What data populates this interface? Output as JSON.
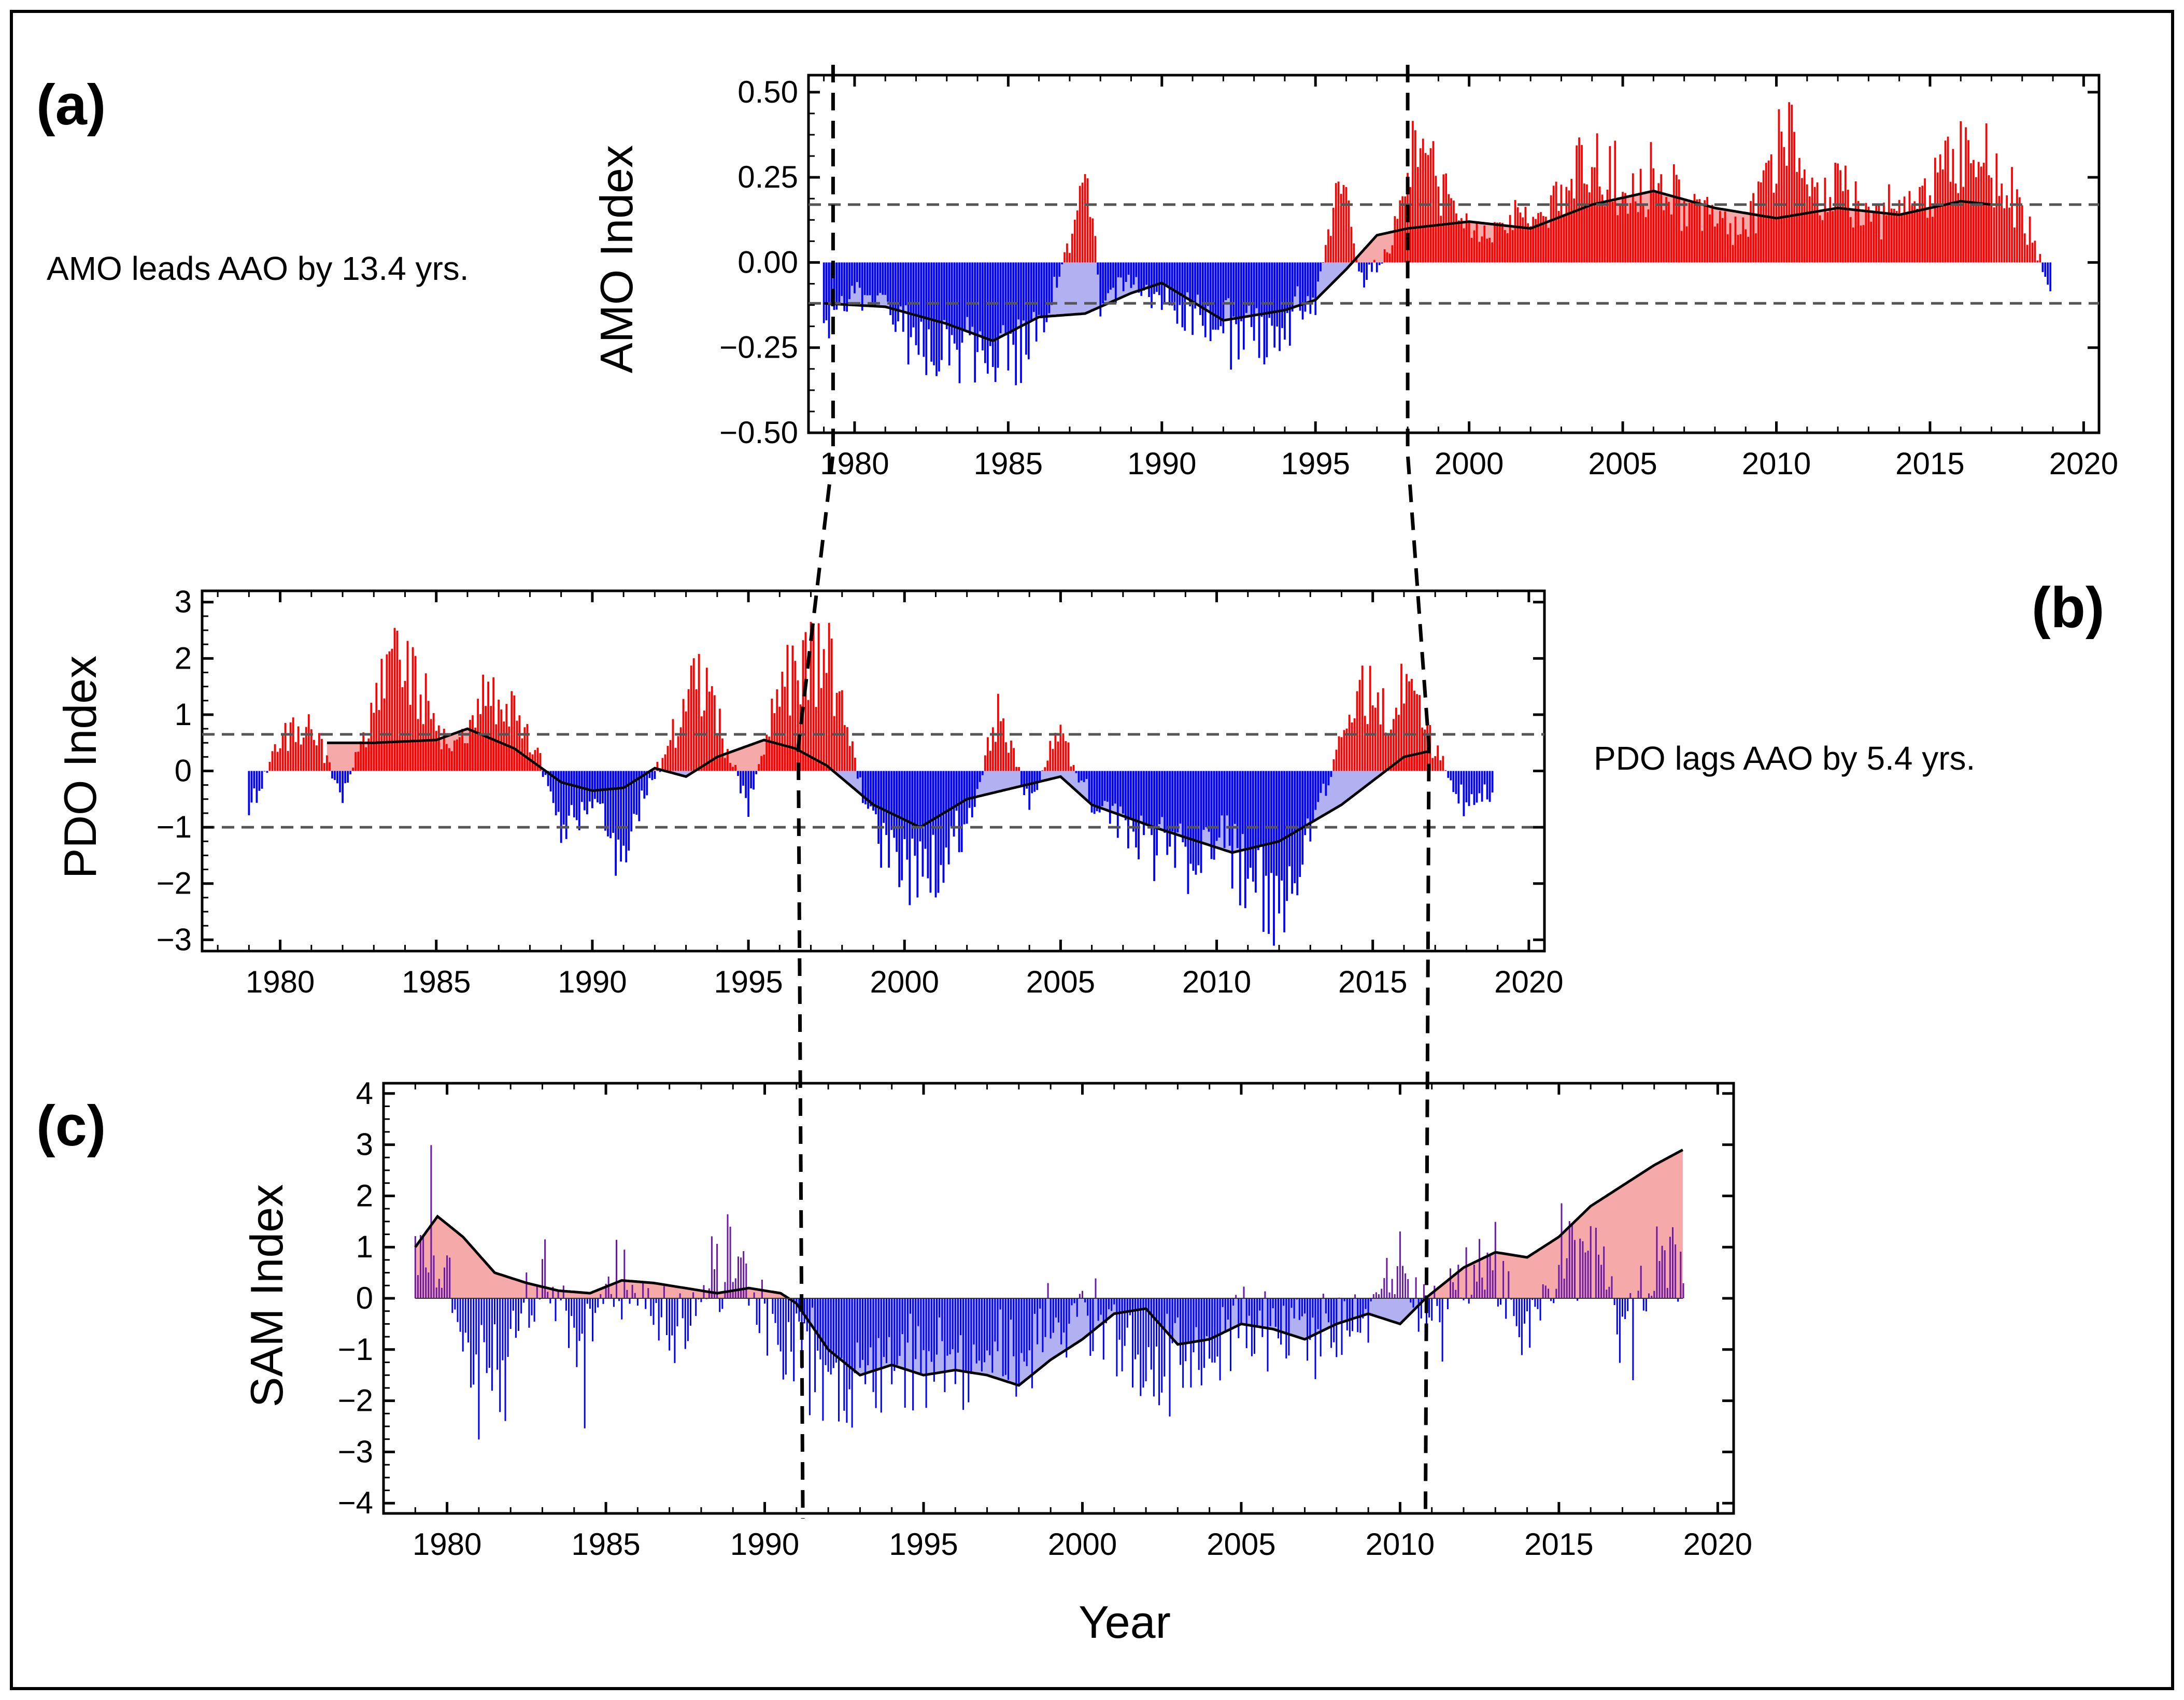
{
  "figure": {
    "outer_border": true,
    "colors": {
      "positive": "#ff0000",
      "negative": "#0000ff",
      "pos_fill": "#f5a0a0",
      "neg_fill": "#a8a8f0",
      "sam_pos_bar": "#6a1aa8",
      "smooth": "#000000",
      "threshold": "#555555"
    }
  },
  "chart_data": [
    {
      "panel": "(a)",
      "type": "bar",
      "ylabel": "AMO Index",
      "xlim": [
        1978.5,
        2020.5
      ],
      "ylim": [
        -0.5,
        0.55
      ],
      "yticks": [
        -0.5,
        -0.25,
        0.0,
        0.25,
        0.5
      ],
      "ytick_labels": [
        "−0.50",
        "−0.25",
        "0.00",
        "0.25",
        "0.50"
      ],
      "xticks": [
        1980,
        1985,
        1990,
        1995,
        2000,
        2005,
        2010,
        2015,
        2020
      ],
      "xtick_labels": [
        "1980",
        "1985",
        "1990",
        "1995",
        "2000",
        "2005",
        "2010",
        "2015",
        "2020"
      ],
      "thresholds": [
        0.17,
        -0.12
      ],
      "annotation": "AMO leads AAO by 13.4 yrs.",
      "bars_range": [
        1979.0,
        2018.9
      ],
      "bar_samples": [
        [
          1979.0,
          -0.2
        ],
        [
          1980.0,
          -0.08
        ],
        [
          1981.0,
          -0.15
        ],
        [
          1982.0,
          -0.24
        ],
        [
          1983.0,
          -0.3
        ],
        [
          1984.0,
          -0.28
        ],
        [
          1985.0,
          -0.32
        ],
        [
          1986.0,
          -0.22
        ],
        [
          1987.0,
          0.05
        ],
        [
          1987.6,
          0.28
        ],
        [
          1988.0,
          -0.12
        ],
        [
          1989.0,
          -0.06
        ],
        [
          1990.0,
          -0.12
        ],
        [
          1991.0,
          -0.18
        ],
        [
          1992.0,
          -0.22
        ],
        [
          1993.0,
          -0.26
        ],
        [
          1994.0,
          -0.2
        ],
        [
          1995.0,
          -0.12
        ],
        [
          1995.8,
          0.3
        ],
        [
          1996.5,
          -0.08
        ],
        [
          1997.5,
          0.06
        ],
        [
          1998.2,
          0.38
        ],
        [
          1999.0,
          0.25
        ],
        [
          2000.0,
          0.1
        ],
        [
          2001.0,
          0.12
        ],
        [
          2002.0,
          0.15
        ],
        [
          2003.0,
          0.2
        ],
        [
          2004.0,
          0.32
        ],
        [
          2005.0,
          0.24
        ],
        [
          2006.0,
          0.28
        ],
        [
          2007.0,
          0.2
        ],
        [
          2008.0,
          0.12
        ],
        [
          2009.0,
          0.1
        ],
        [
          2010.0,
          0.32
        ],
        [
          2010.6,
          0.45
        ],
        [
          2011.0,
          0.2
        ],
        [
          2012.0,
          0.25
        ],
        [
          2013.0,
          0.14
        ],
        [
          2014.0,
          0.18
        ],
        [
          2015.0,
          0.22
        ],
        [
          2016.0,
          0.35
        ],
        [
          2017.0,
          0.3
        ],
        [
          2018.0,
          0.16
        ],
        [
          2018.9,
          -0.08
        ]
      ],
      "smooth_x": [
        1979.0,
        1981.0,
        1983.0,
        1984.5,
        1986.0,
        1987.5,
        1989.0,
        1990.0,
        1992.0,
        1994.0,
        1995.0,
        1996.0,
        1997.0,
        1998.0,
        2000.0,
        2002.0,
        2004.0,
        2006.0,
        2008.0,
        2010.0,
        2012.0,
        2014.0,
        2016.0,
        2017.0
      ],
      "smooth_y": [
        -0.12,
        -0.13,
        -0.18,
        -0.23,
        -0.16,
        -0.15,
        -0.09,
        -0.06,
        -0.17,
        -0.14,
        -0.11,
        -0.02,
        0.08,
        0.1,
        0.12,
        0.1,
        0.17,
        0.21,
        0.16,
        0.13,
        0.16,
        0.14,
        0.18,
        0.17
      ]
    },
    {
      "panel": "(b)",
      "type": "bar",
      "ylabel": "PDO Index",
      "xlim": [
        1977.5,
        2020.5
      ],
      "ylim": [
        -3.2,
        3.2
      ],
      "yticks": [
        -3,
        -2,
        -1,
        0,
        1,
        2,
        3
      ],
      "ytick_labels": [
        "−3",
        "−2",
        "−1",
        "0",
        "1",
        "2",
        "3"
      ],
      "xticks": [
        1980,
        1985,
        1990,
        1995,
        2000,
        2005,
        2010,
        2015,
        2020
      ],
      "xtick_labels": [
        "1980",
        "1985",
        "1990",
        "1995",
        "2000",
        "2005",
        "2010",
        "2015",
        "2020"
      ],
      "thresholds": [
        0.65,
        -1.0
      ],
      "annotation": "PDO lags AAO by 5.4 yrs.",
      "bars_range": [
        1979.0,
        2018.8
      ],
      "bar_samples": [
        [
          1979.0,
          -0.9
        ],
        [
          1980.0,
          0.6
        ],
        [
          1981.0,
          1.0
        ],
        [
          1982.0,
          -0.6
        ],
        [
          1983.0,
          1.3
        ],
        [
          1983.8,
          2.4
        ],
        [
          1984.5,
          1.5
        ],
        [
          1985.5,
          0.4
        ],
        [
          1986.5,
          1.4
        ],
        [
          1987.5,
          1.2
        ],
        [
          1988.3,
          0.2
        ],
        [
          1989.0,
          -1.0
        ],
        [
          1990.0,
          -0.6
        ],
        [
          1991.0,
          -1.8
        ],
        [
          1991.8,
          -0.3
        ],
        [
          1992.5,
          0.6
        ],
        [
          1993.2,
          1.8
        ],
        [
          1994.0,
          1.0
        ],
        [
          1995.0,
          -0.7
        ],
        [
          1995.8,
          1.2
        ],
        [
          1996.5,
          2.0
        ],
        [
          1997.5,
          2.3
        ],
        [
          1998.3,
          0.4
        ],
        [
          1999.0,
          -1.2
        ],
        [
          2000.0,
          -1.9
        ],
        [
          2001.0,
          -1.8
        ],
        [
          2002.0,
          -1.0
        ],
        [
          2003.0,
          1.2
        ],
        [
          2004.0,
          -0.6
        ],
        [
          2005.0,
          0.9
        ],
        [
          2006.0,
          -0.8
        ],
        [
          2007.0,
          -1.0
        ],
        [
          2008.0,
          -1.6
        ],
        [
          2009.0,
          -1.8
        ],
        [
          2010.0,
          -1.2
        ],
        [
          2011.0,
          -2.0
        ],
        [
          2012.0,
          -2.6
        ],
        [
          2012.8,
          -1.6
        ],
        [
          2014.0,
          0.6
        ],
        [
          2014.8,
          1.6
        ],
        [
          2015.5,
          1.1
        ],
        [
          2016.3,
          1.7
        ],
        [
          2017.0,
          0.5
        ],
        [
          2017.8,
          -0.6
        ],
        [
          2018.8,
          -0.5
        ]
      ],
      "smooth_x": [
        1981.5,
        1983.0,
        1985.0,
        1986.0,
        1987.5,
        1989.0,
        1990.0,
        1991.0,
        1992.0,
        1993.0,
        1994.0,
        1995.5,
        1996.5,
        1997.5,
        1999.0,
        2000.5,
        2002.0,
        2003.5,
        2005.0,
        2006.0,
        2008.0,
        2010.5,
        2012.0,
        2014.0,
        2016.0,
        2016.8
      ],
      "smooth_y": [
        0.5,
        0.5,
        0.55,
        0.75,
        0.4,
        -0.2,
        -0.35,
        -0.3,
        0.05,
        -0.1,
        0.25,
        0.55,
        0.4,
        0.1,
        -0.6,
        -1.0,
        -0.5,
        -0.3,
        -0.1,
        -0.6,
        -1.0,
        -1.45,
        -1.25,
        -0.6,
        0.25,
        0.35
      ]
    },
    {
      "panel": "(c)",
      "type": "bar",
      "ylabel": "SAM Index",
      "xlabel": "Year",
      "xlim": [
        1978.0,
        2020.5
      ],
      "ylim": [
        -4.2,
        4.2
      ],
      "yticks": [
        -4,
        -3,
        -2,
        -1,
        0,
        1,
        2,
        3,
        4
      ],
      "ytick_labels": [
        "−4",
        "−3",
        "−2",
        "−1",
        "0",
        "1",
        "2",
        "3",
        "4"
      ],
      "xticks": [
        1980,
        1985,
        1990,
        1995,
        2000,
        2005,
        2010,
        2015,
        2020
      ],
      "xtick_labels": [
        "1980",
        "1985",
        "1990",
        "1995",
        "2000",
        "2005",
        "2010",
        "2015",
        "2020"
      ],
      "bars_range": [
        1979.0,
        2018.9
      ],
      "bar_samples": [
        [
          1979.0,
          0.6
        ],
        [
          1980.0,
          1.0
        ],
        [
          1981.0,
          -1.8
        ],
        [
          1982.0,
          -1.0
        ],
        [
          1983.0,
          0.8
        ],
        [
          1984.0,
          -1.2
        ],
        [
          1985.0,
          0.4
        ],
        [
          1986.0,
          0.5
        ],
        [
          1987.0,
          -1.0
        ],
        [
          1988.0,
          0.2
        ],
        [
          1989.0,
          1.0
        ],
        [
          1990.0,
          -0.5
        ],
        [
          1991.0,
          -1.0
        ],
        [
          1992.0,
          -1.8
        ],
        [
          1993.0,
          -1.6
        ],
        [
          1994.0,
          -1.4
        ],
        [
          1995.0,
          -2.0
        ],
        [
          1996.0,
          -1.4
        ],
        [
          1997.0,
          -1.8
        ],
        [
          1998.0,
          -1.2
        ],
        [
          1999.0,
          -0.8
        ],
        [
          2000.0,
          -0.4
        ],
        [
          2001.0,
          -0.8
        ],
        [
          2002.0,
          -1.6
        ],
        [
          2003.0,
          -1.0
        ],
        [
          2004.0,
          -1.4
        ],
        [
          2005.0,
          -0.4
        ],
        [
          2006.0,
          -0.8
        ],
        [
          2007.0,
          -1.0
        ],
        [
          2008.0,
          -0.6
        ],
        [
          2009.0,
          -0.4
        ],
        [
          2010.0,
          0.8
        ],
        [
          2011.0,
          -1.0
        ],
        [
          2012.0,
          0.6
        ],
        [
          2013.0,
          0.8
        ],
        [
          2014.0,
          -1.0
        ],
        [
          2015.0,
          0.9
        ],
        [
          2016.0,
          1.4
        ],
        [
          2017.0,
          -0.8
        ],
        [
          2018.0,
          0.7
        ],
        [
          2018.9,
          0.6
        ]
      ],
      "smooth_x": [
        1979.0,
        1979.7,
        1980.5,
        1981.5,
        1982.5,
        1983.5,
        1984.5,
        1985.5,
        1986.5,
        1987.5,
        1988.5,
        1989.5,
        1990.5,
        1991.0,
        1992.0,
        1993.0,
        1994.0,
        1995.0,
        1996.0,
        1997.0,
        1998.0,
        1999.0,
        2000.0,
        2001.0,
        2002.0,
        2003.0,
        2004.0,
        2005.0,
        2006.0,
        2007.0,
        2008.0,
        2009.0,
        2010.0,
        2010.8,
        2012.0,
        2013.0,
        2014.0,
        2015.0,
        2016.0,
        2017.0,
        2018.0,
        2018.9
      ],
      "smooth_y": [
        1.0,
        1.6,
        1.2,
        0.5,
        0.3,
        0.15,
        0.1,
        0.35,
        0.3,
        0.2,
        0.1,
        0.2,
        0.1,
        -0.1,
        -1.0,
        -1.5,
        -1.3,
        -1.5,
        -1.4,
        -1.5,
        -1.7,
        -1.2,
        -0.8,
        -0.3,
        -0.2,
        -0.9,
        -0.8,
        -0.5,
        -0.6,
        -0.8,
        -0.5,
        -0.3,
        -0.5,
        0.0,
        0.6,
        0.9,
        0.8,
        1.2,
        1.8,
        2.2,
        2.6,
        2.9
      ]
    }
  ],
  "lag_lines": {
    "description": "dashed lead/lag connectors",
    "left": [
      "1979.3@a",
      "1996.6@b",
      "1991.2@c"
    ],
    "right": [
      "1998.0@a",
      "2016.8@b",
      "2010.8@c"
    ]
  }
}
